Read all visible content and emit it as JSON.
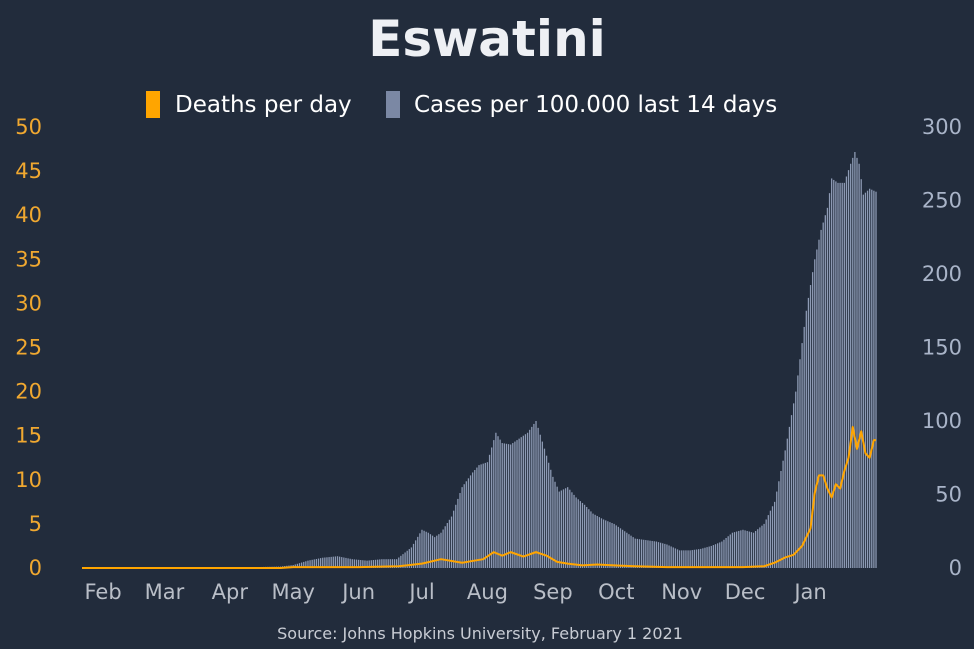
{
  "chart_data": {
    "type": "bar+line",
    "title": "Eswatini",
    "source": "Source: Johns Hopkins University, February 1 2021",
    "x_start": "2020-01-22",
    "x_end": "2021-02-01",
    "x_tick_labels": [
      "Feb",
      "Mar",
      "Apr",
      "May",
      "Jun",
      "Jul",
      "Aug",
      "Sep",
      "Oct",
      "Nov",
      "Dec",
      "Jan"
    ],
    "x_tick_dates": [
      "2020-02-01",
      "2020-03-01",
      "2020-04-01",
      "2020-05-01",
      "2020-06-01",
      "2020-07-01",
      "2020-08-01",
      "2020-09-01",
      "2020-10-01",
      "2020-11-01",
      "2020-12-01",
      "2021-01-01"
    ],
    "left_axis": {
      "ylim": [
        0,
        50
      ],
      "ticks": [
        "0",
        "5",
        "10",
        "15",
        "20",
        "25",
        "30",
        "35",
        "40",
        "45",
        "50"
      ],
      "color": "#f0a830"
    },
    "right_axis": {
      "ylim": [
        0,
        300
      ],
      "ticks": [
        "0",
        "50",
        "100",
        "150",
        "200",
        "250",
        "300"
      ],
      "color": "#a9b4c8"
    },
    "legend": [
      {
        "name": "Deaths per day",
        "color": "#ffa500"
      },
      {
        "name": "Cases per 100.000 last 14 days",
        "color": "#7b88a4"
      }
    ],
    "series": [
      {
        "name": "Cases per 100.000 last 14 days",
        "axis": "right",
        "kind": "bar",
        "color": "#8e9bb5",
        "points": [
          [
            "2020-01-22",
            0
          ],
          [
            "2020-03-13",
            0
          ],
          [
            "2020-03-20",
            0.2
          ],
          [
            "2020-04-10",
            0.5
          ],
          [
            "2020-04-25",
            1
          ],
          [
            "2020-05-01",
            2
          ],
          [
            "2020-05-08",
            5
          ],
          [
            "2020-05-15",
            7
          ],
          [
            "2020-05-22",
            8
          ],
          [
            "2020-05-29",
            6
          ],
          [
            "2020-06-05",
            5
          ],
          [
            "2020-06-12",
            6
          ],
          [
            "2020-06-19",
            6
          ],
          [
            "2020-06-26",
            14
          ],
          [
            "2020-07-01",
            26
          ],
          [
            "2020-07-04",
            24
          ],
          [
            "2020-07-07",
            21
          ],
          [
            "2020-07-10",
            24
          ],
          [
            "2020-07-15",
            35
          ],
          [
            "2020-07-20",
            55
          ],
          [
            "2020-07-25",
            65
          ],
          [
            "2020-07-28",
            70
          ],
          [
            "2020-08-01",
            72
          ],
          [
            "2020-08-05",
            92
          ],
          [
            "2020-08-08",
            85
          ],
          [
            "2020-08-12",
            84
          ],
          [
            "2020-08-16",
            88
          ],
          [
            "2020-08-20",
            92
          ],
          [
            "2020-08-24",
            100
          ],
          [
            "2020-08-27",
            86
          ],
          [
            "2020-09-01",
            62
          ],
          [
            "2020-09-04",
            52
          ],
          [
            "2020-09-08",
            55
          ],
          [
            "2020-09-12",
            48
          ],
          [
            "2020-09-16",
            43
          ],
          [
            "2020-09-20",
            37
          ],
          [
            "2020-09-25",
            33
          ],
          [
            "2020-09-30",
            30
          ],
          [
            "2020-10-05",
            25
          ],
          [
            "2020-10-10",
            20
          ],
          [
            "2020-10-15",
            19
          ],
          [
            "2020-10-20",
            18
          ],
          [
            "2020-10-25",
            16
          ],
          [
            "2020-10-31",
            12
          ],
          [
            "2020-11-05",
            12
          ],
          [
            "2020-11-10",
            13
          ],
          [
            "2020-11-15",
            15
          ],
          [
            "2020-11-20",
            18
          ],
          [
            "2020-11-25",
            24
          ],
          [
            "2020-11-30",
            26
          ],
          [
            "2020-12-05",
            24
          ],
          [
            "2020-12-10",
            30
          ],
          [
            "2020-12-15",
            45
          ],
          [
            "2020-12-20",
            80
          ],
          [
            "2020-12-25",
            120
          ],
          [
            "2020-12-30",
            175
          ],
          [
            "2021-01-03",
            210
          ],
          [
            "2021-01-06",
            230
          ],
          [
            "2021-01-09",
            245
          ],
          [
            "2021-01-11",
            265
          ],
          [
            "2021-01-14",
            262
          ],
          [
            "2021-01-17",
            262
          ],
          [
            "2021-01-20",
            275
          ],
          [
            "2021-01-22",
            283
          ],
          [
            "2021-01-24",
            275
          ],
          [
            "2021-01-26",
            254
          ],
          [
            "2021-01-29",
            258
          ],
          [
            "2021-02-01",
            256
          ]
        ]
      },
      {
        "name": "Deaths per day",
        "axis": "left",
        "kind": "line",
        "color": "#ffa500",
        "points": [
          [
            "2020-01-22",
            0
          ],
          [
            "2020-04-25",
            0
          ],
          [
            "2020-05-01",
            0.1
          ],
          [
            "2020-05-20",
            0.1
          ],
          [
            "2020-06-01",
            0.1
          ],
          [
            "2020-06-20",
            0.2
          ],
          [
            "2020-07-01",
            0.5
          ],
          [
            "2020-07-10",
            1
          ],
          [
            "2020-07-20",
            0.6
          ],
          [
            "2020-07-25",
            0.8
          ],
          [
            "2020-07-30",
            1
          ],
          [
            "2020-08-04",
            1.8
          ],
          [
            "2020-08-08",
            1.4
          ],
          [
            "2020-08-12",
            1.8
          ],
          [
            "2020-08-18",
            1.3
          ],
          [
            "2020-08-24",
            1.8
          ],
          [
            "2020-08-29",
            1.4
          ],
          [
            "2020-09-03",
            0.7
          ],
          [
            "2020-09-08",
            0.5
          ],
          [
            "2020-09-15",
            0.3
          ],
          [
            "2020-09-22",
            0.4
          ],
          [
            "2020-09-30",
            0.3
          ],
          [
            "2020-10-10",
            0.2
          ],
          [
            "2020-10-25",
            0.1
          ],
          [
            "2020-11-10",
            0.1
          ],
          [
            "2020-11-30",
            0.1
          ],
          [
            "2020-12-10",
            0.2
          ],
          [
            "2020-12-15",
            0.6
          ],
          [
            "2020-12-20",
            1.2
          ],
          [
            "2020-12-24",
            1.5
          ],
          [
            "2020-12-28",
            2.5
          ],
          [
            "2021-01-01",
            4.5
          ],
          [
            "2021-01-03",
            8.5
          ],
          [
            "2021-01-05",
            10.5
          ],
          [
            "2021-01-07",
            10.5
          ],
          [
            "2021-01-09",
            9
          ],
          [
            "2021-01-11",
            8
          ],
          [
            "2021-01-13",
            9.5
          ],
          [
            "2021-01-15",
            9
          ],
          [
            "2021-01-17",
            11
          ],
          [
            "2021-01-19",
            12.5
          ],
          [
            "2021-01-21",
            16
          ],
          [
            "2021-01-23",
            13.5
          ],
          [
            "2021-01-25",
            15.5
          ],
          [
            "2021-01-27",
            13
          ],
          [
            "2021-01-29",
            12.5
          ],
          [
            "2021-01-31",
            14.5
          ],
          [
            "2021-02-01",
            14.5
          ]
        ]
      }
    ]
  }
}
